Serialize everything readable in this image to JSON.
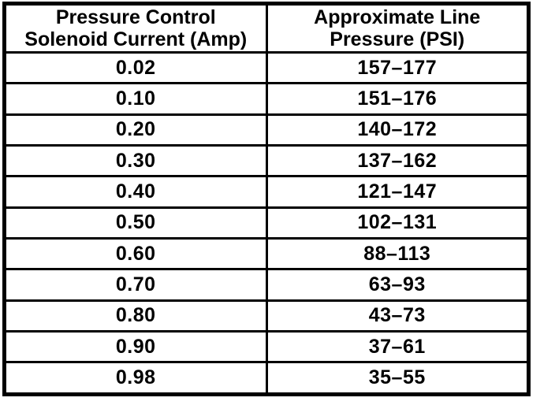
{
  "colors": {
    "border": "#000000",
    "background": "#ffffff",
    "text": "#000000"
  },
  "table": {
    "headers": [
      {
        "line1": "Pressure Control",
        "line2": "Solenoid Current (Amp)"
      },
      {
        "line1": "Approximate Line",
        "line2": "Pressure (PSI)"
      }
    ],
    "rows": [
      {
        "current": "0.02",
        "pressure": "157–177"
      },
      {
        "current": "0.10",
        "pressure": "151–176"
      },
      {
        "current": "0.20",
        "pressure": "140–172"
      },
      {
        "current": "0.30",
        "pressure": "137–162"
      },
      {
        "current": "0.40",
        "pressure": "121–147"
      },
      {
        "current": "0.50",
        "pressure": "102–131"
      },
      {
        "current": "0.60",
        "pressure": "88–113"
      },
      {
        "current": "0.70",
        "pressure": "63–93"
      },
      {
        "current": "0.80",
        "pressure": "43–73"
      },
      {
        "current": "0.90",
        "pressure": "37–61"
      },
      {
        "current": "0.98",
        "pressure": "35–55"
      }
    ]
  }
}
